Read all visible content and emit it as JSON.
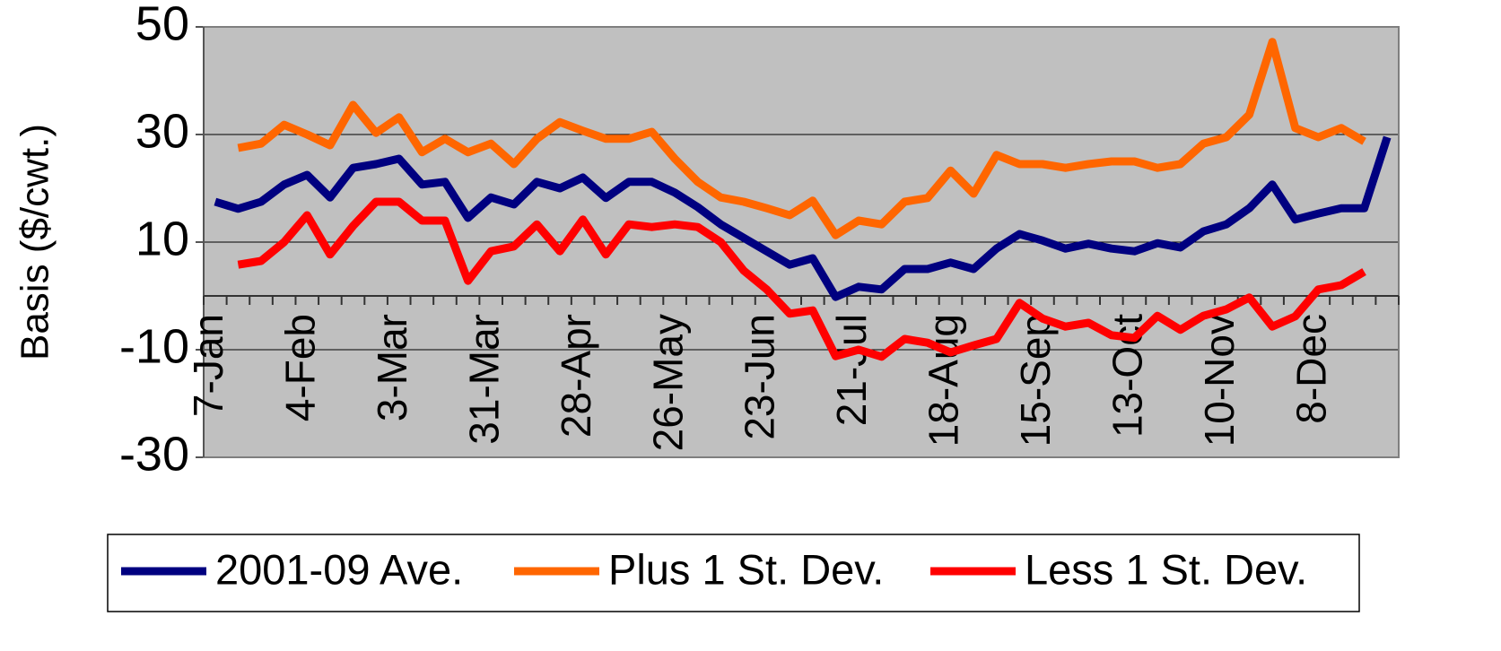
{
  "chart_data": {
    "type": "line",
    "y_label": "Basis ($/cwt.)",
    "categories": [
      "7-Jan",
      null,
      null,
      null,
      "4-Feb",
      null,
      null,
      null,
      "3-Mar",
      null,
      null,
      null,
      "31-Mar",
      null,
      null,
      null,
      "28-Apr",
      null,
      null,
      null,
      "26-May",
      null,
      null,
      null,
      "23-Jun",
      null,
      null,
      null,
      "21-Jul",
      null,
      null,
      null,
      "18-Aug",
      null,
      null,
      null,
      "15-Sep",
      null,
      null,
      null,
      "13-Oct",
      null,
      null,
      null,
      "10-Nov",
      null,
      null,
      null,
      "8-Dec",
      null,
      null,
      null
    ],
    "series": [
      {
        "name": "2001-09 Ave.",
        "color": "#000080",
        "values": [
          17.5,
          16.2,
          17.5,
          20.7,
          22.5,
          18.3,
          23.8,
          24.5,
          25.5,
          20.7,
          21.2,
          14.5,
          18.3,
          17,
          21.2,
          20,
          22,
          18.2,
          21.2,
          21.2,
          19.2,
          16.5,
          13.3,
          10.8,
          8.3,
          5.8,
          7,
          -0.2,
          1.7,
          1.2,
          5,
          5,
          6.2,
          5,
          8.8,
          11.5,
          10.3,
          8.8,
          9.7,
          8.8,
          8.3,
          9.8,
          9,
          12,
          13.3,
          16.3,
          20.7,
          14.2,
          15.3,
          16.3,
          16.3,
          29.5
        ]
      },
      {
        "name": "Plus 1 St. Dev.",
        "color": "#ff6600",
        "values": [
          null,
          27.5,
          28.3,
          31.8,
          30,
          28,
          35.5,
          30.3,
          33.2,
          26.7,
          29.2,
          26.7,
          28.3,
          24.5,
          29.2,
          32.3,
          30.7,
          29.2,
          29.2,
          30.5,
          25.5,
          21.2,
          18.3,
          17.5,
          16.3,
          15,
          17.7,
          11.3,
          14,
          13.3,
          17.5,
          18.2,
          23.3,
          19,
          26.2,
          24.5,
          24.5,
          23.8,
          24.5,
          25,
          25,
          23.8,
          24.5,
          28.3,
          29.5,
          33.7,
          47.2,
          31.2,
          29.5,
          31.2,
          28.7,
          null
        ]
      },
      {
        "name": "Less 1 St. Dev.",
        "color": "#ff0000",
        "values": [
          null,
          5.8,
          6.5,
          10,
          15,
          7.7,
          13,
          17.5,
          17.5,
          14,
          14,
          2.8,
          8.3,
          9.2,
          13.3,
          8.3,
          14.2,
          7.7,
          13.3,
          12.8,
          13.3,
          12.8,
          10,
          4.7,
          1.2,
          -3.3,
          -2.7,
          -11.2,
          -10,
          -11.3,
          -8,
          -8.7,
          -10.5,
          -9.2,
          -8,
          -1.3,
          -4.2,
          -5.7,
          -5,
          -7.3,
          -7.8,
          -3.7,
          -6.3,
          -3.7,
          -2.5,
          -0.3,
          -5.7,
          -3.8,
          1.2,
          2,
          4.5,
          null
        ]
      }
    ],
    "ylim": [
      -30,
      50
    ],
    "yticks": [
      -30,
      -10,
      10,
      30,
      50
    ],
    "grid": true,
    "plot_background": "#c0c0c0",
    "legend_position": "bottom"
  }
}
